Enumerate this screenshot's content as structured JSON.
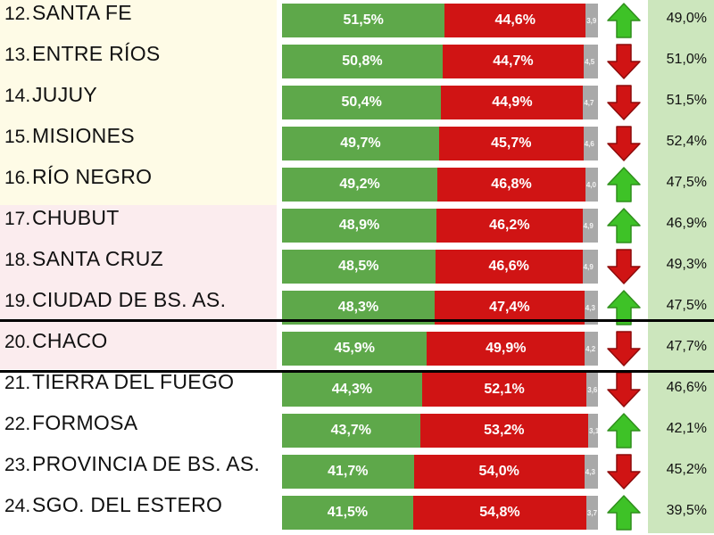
{
  "colors": {
    "green": "#5ea84a",
    "red": "#d01414",
    "gray": "#a9a9a9",
    "arrow_up": "#3ec227",
    "arrow_down": "#d01414",
    "band_yellow": "#fefbe6",
    "band_pink": "#fbecee",
    "band_white": "#ffffff",
    "right_panel": "#cce6bd"
  },
  "chart_data": {
    "type": "bar",
    "stacked": true,
    "orientation": "horizontal",
    "series_order": [
      "green",
      "red",
      "gray"
    ],
    "highlighted_rank": "20.",
    "rows": [
      {
        "rank": "12.",
        "name": "SANTA FE",
        "green": 51.5,
        "green_label": "51,5%",
        "red": 44.6,
        "red_label": "44,6%",
        "gray": 3.9,
        "gray_label": "3,9",
        "arrow": "up",
        "right": "49,0%",
        "band": "yellow"
      },
      {
        "rank": "13.",
        "name": "ENTRE RÍOS",
        "green": 50.8,
        "green_label": "50,8%",
        "red": 44.7,
        "red_label": "44,7%",
        "gray": 4.5,
        "gray_label": "4,5",
        "arrow": "down",
        "right": "51,0%",
        "band": "yellow"
      },
      {
        "rank": "14.",
        "name": "JUJUY",
        "green": 50.4,
        "green_label": "50,4%",
        "red": 44.9,
        "red_label": "44,9%",
        "gray": 4.7,
        "gray_label": "4,7",
        "arrow": "down",
        "right": "51,5%",
        "band": "yellow"
      },
      {
        "rank": "15.",
        "name": "MISIONES",
        "green": 49.7,
        "green_label": "49,7%",
        "red": 45.7,
        "red_label": "45,7%",
        "gray": 4.6,
        "gray_label": "4,6",
        "arrow": "down",
        "right": "52,4%",
        "band": "yellow"
      },
      {
        "rank": "16.",
        "name": "RÍO NEGRO",
        "green": 49.2,
        "green_label": "49,2%",
        "red": 46.8,
        "red_label": "46,8%",
        "gray": 4.0,
        "gray_label": "4,0",
        "arrow": "up",
        "right": "47,5%",
        "band": "yellow"
      },
      {
        "rank": "17.",
        "name": "CHUBUT",
        "green": 48.9,
        "green_label": "48,9%",
        "red": 46.2,
        "red_label": "46,2%",
        "gray": 4.9,
        "gray_label": "4,9",
        "arrow": "up",
        "right": "46,9%",
        "band": "pink"
      },
      {
        "rank": "18.",
        "name": "SANTA CRUZ",
        "green": 48.5,
        "green_label": "48,5%",
        "red": 46.6,
        "red_label": "46,6%",
        "gray": 4.9,
        "gray_label": "4,9",
        "arrow": "down",
        "right": "49,3%",
        "band": "pink"
      },
      {
        "rank": "19.",
        "name": "CIUDAD DE BS. AS.",
        "green": 48.3,
        "green_label": "48,3%",
        "red": 47.4,
        "red_label": "47,4%",
        "gray": 4.3,
        "gray_label": "4,3",
        "arrow": "up",
        "right": "47,5%",
        "band": "pink"
      },
      {
        "rank": "20.",
        "name": "CHACO",
        "green": 45.9,
        "green_label": "45,9%",
        "red": 49.9,
        "red_label": "49,9%",
        "gray": 4.2,
        "gray_label": "4,2",
        "arrow": "down",
        "right": "47,7%",
        "band": "pink"
      },
      {
        "rank": "21.",
        "name": "TIERRA DEL FUEGO",
        "green": 44.3,
        "green_label": "44,3%",
        "red": 52.1,
        "red_label": "52,1%",
        "gray": 3.6,
        "gray_label": "3,6",
        "arrow": "down",
        "right": "46,6%",
        "band": "white"
      },
      {
        "rank": "22.",
        "name": "FORMOSA",
        "green": 43.7,
        "green_label": "43,7%",
        "red": 53.2,
        "red_label": "53,2%",
        "gray": 3.1,
        "gray_label": "3,1",
        "arrow": "up",
        "right": "42,1%",
        "band": "white"
      },
      {
        "rank": "23.",
        "name": "PROVINCIA DE BS. AS.",
        "green": 41.7,
        "green_label": "41,7%",
        "red": 54.0,
        "red_label": "54,0%",
        "gray": 4.3,
        "gray_label": "4,3",
        "arrow": "down",
        "right": "45,2%",
        "band": "white"
      },
      {
        "rank": "24.",
        "name": "SGO. DEL ESTERO",
        "green": 41.5,
        "green_label": "41,5%",
        "red": 54.8,
        "red_label": "54,8%",
        "gray": 3.7,
        "gray_label": "3,7",
        "arrow": "up",
        "right": "39,5%",
        "band": "white"
      }
    ]
  }
}
